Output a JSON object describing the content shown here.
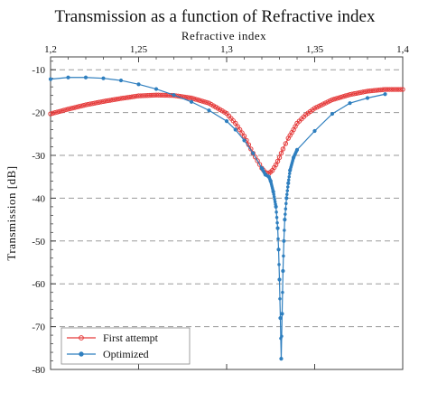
{
  "colors": {
    "first_attempt": "#e53b3b",
    "optimized": "#2f7fbf",
    "grid": "#9a9a9a",
    "axis": "#444444"
  },
  "chart_data": {
    "type": "line",
    "title": "Transmission as a function of Refractive index",
    "xlabel": "Refractive index",
    "ylabel": "Transmission [dB]",
    "xlim": [
      1.2,
      1.4
    ],
    "ylim": [
      -80,
      -7
    ],
    "x_axis_position": "top",
    "xticks": [
      1.2,
      1.25,
      1.3,
      1.35,
      1.4
    ],
    "xtick_labels": [
      "1,2",
      "1,25",
      "1,3",
      "1,35",
      "1,4"
    ],
    "yticks": [
      -10,
      -20,
      -30,
      -40,
      -50,
      -60,
      -70,
      -80
    ],
    "ytick_labels": [
      "-10",
      "-20",
      "-30",
      "-40",
      "-50",
      "-60",
      "-70",
      "-80"
    ],
    "grid": "horizontal dashed",
    "legend_position": "bottom-left",
    "series": [
      {
        "name": "First attempt",
        "color": "#e53b3b",
        "marker": "open circle",
        "x": [
          1.2,
          1.21,
          1.22,
          1.23,
          1.24,
          1.25,
          1.26,
          1.27,
          1.28,
          1.29,
          1.3,
          1.305,
          1.31,
          1.315,
          1.32,
          1.322,
          1.324,
          1.326,
          1.328,
          1.33,
          1.332,
          1.335,
          1.338,
          1.34,
          1.345,
          1.35,
          1.36,
          1.37,
          1.38,
          1.39,
          1.4
        ],
        "y": [
          -20.3,
          -19.2,
          -18.2,
          -17.4,
          -16.7,
          -16.1,
          -15.9,
          -16.0,
          -16.6,
          -17.8,
          -20.2,
          -22.5,
          -25.5,
          -29.5,
          -33.0,
          -34.0,
          -34.2,
          -33.5,
          -32.2,
          -30.5,
          -28.5,
          -26.0,
          -24.0,
          -22.5,
          -20.5,
          -19.0,
          -17.0,
          -15.8,
          -15.0,
          -14.6,
          -14.6
        ]
      },
      {
        "name": "Optimized",
        "color": "#2f7fbf",
        "marker": "filled circle",
        "x": [
          1.2,
          1.21,
          1.22,
          1.23,
          1.24,
          1.25,
          1.26,
          1.27,
          1.28,
          1.29,
          1.3,
          1.305,
          1.31,
          1.315,
          1.32,
          1.322,
          1.324,
          1.325,
          1.3265,
          1.328,
          1.329,
          1.3295,
          1.33,
          1.3305,
          1.331,
          1.3315,
          1.332,
          1.3325,
          1.333,
          1.334,
          1.335,
          1.336,
          1.338,
          1.34,
          1.35,
          1.36,
          1.37,
          1.38,
          1.39
        ],
        "y": [
          -12.2,
          -11.8,
          -11.8,
          -12.0,
          -12.5,
          -13.4,
          -14.5,
          -15.9,
          -17.5,
          -19.5,
          -22.0,
          -24.0,
          -26.5,
          -29.5,
          -33.0,
          -34.5,
          -35.0,
          -36.0,
          -38.5,
          -42.0,
          -47.0,
          -52.0,
          -59.0,
          -68.0,
          -77.5,
          -67.0,
          -57.0,
          -50.0,
          -45.0,
          -40.0,
          -36.5,
          -33.5,
          -30.5,
          -28.7,
          -24.3,
          -20.3,
          -17.8,
          -16.6,
          -15.7
        ]
      }
    ]
  }
}
